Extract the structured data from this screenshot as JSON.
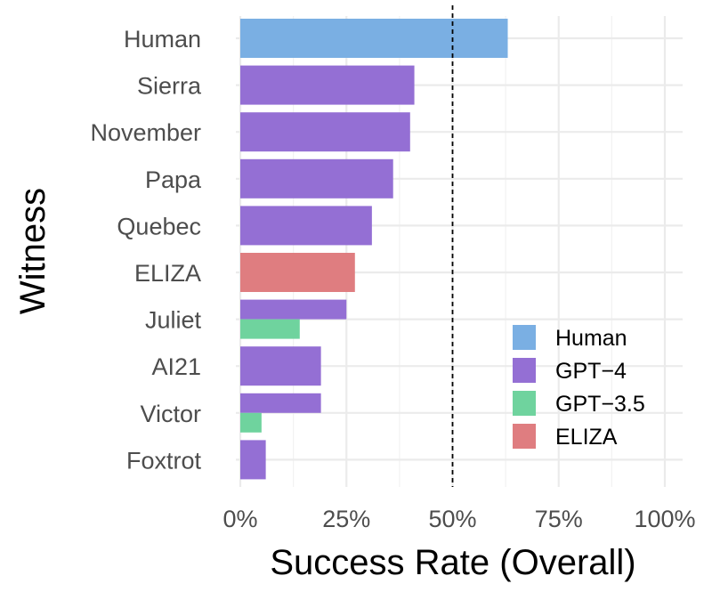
{
  "chart_data": {
    "type": "bar",
    "orientation": "horizontal",
    "xlabel": "Success Rate (Overall)",
    "ylabel": "Witness",
    "xlim": [
      0,
      1
    ],
    "x_ticks": [
      "0%",
      "25%",
      "50%",
      "75%",
      "100%"
    ],
    "x_tick_values": [
      0,
      0.25,
      0.5,
      0.75,
      1.0
    ],
    "reference_line": {
      "x": 0.5,
      "style": "dashed"
    },
    "grid": true,
    "legend_position": "bottom-right",
    "categories": [
      "Human",
      "Sierra",
      "November",
      "Papa",
      "Quebec",
      "ELIZA",
      "Juliet",
      "AI21",
      "Victor",
      "Foxtrot"
    ],
    "series": [
      {
        "name": "Human",
        "color": "#7aafe3",
        "values": [
          0.63,
          null,
          null,
          null,
          null,
          null,
          null,
          null,
          null,
          null
        ]
      },
      {
        "name": "GPT−4",
        "color": "#946fd4",
        "values": [
          null,
          0.41,
          0.4,
          0.36,
          0.31,
          null,
          0.25,
          0.19,
          0.19,
          0.06
        ]
      },
      {
        "name": "GPT−3.5",
        "color": "#6fd39e",
        "values": [
          null,
          null,
          null,
          null,
          null,
          null,
          0.14,
          null,
          0.05,
          null
        ]
      },
      {
        "name": "ELIZA",
        "color": "#df7d80",
        "values": [
          null,
          null,
          null,
          null,
          null,
          0.27,
          null,
          null,
          null,
          null
        ]
      }
    ]
  }
}
